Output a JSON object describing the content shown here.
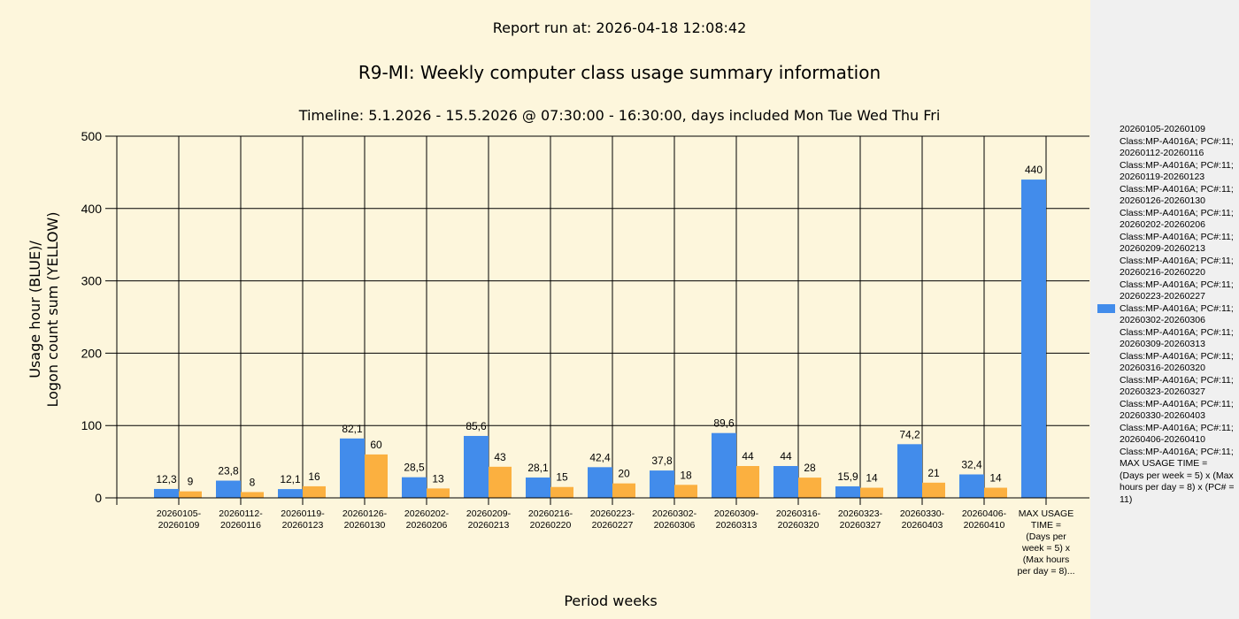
{
  "header": {
    "report_run": "Report run at: 2026-04-18 12:08:42",
    "title": "R9-MI: Weekly computer class usage summary information",
    "subtitle": "Timeline:  5.1.2026  - 15.5.2026  @  07:30:00 -  16:30:00, days included Mon Tue Wed Thu Fri"
  },
  "chart_data": {
    "type": "bar",
    "title": "R9-MI: Weekly computer class usage summary information",
    "xlabel": "Period weeks",
    "ylabel_lines": [
      "Usage hour (BLUE)/",
      "Logon count sum (YELLOW)"
    ],
    "ylim": [
      0,
      500
    ],
    "yticks": [
      "0",
      "100",
      "200",
      "300",
      "400",
      "500"
    ],
    "grid": true,
    "legend_position": "right",
    "categories": [
      [
        "20260105-",
        "20260109"
      ],
      [
        "20260112-",
        "20260116"
      ],
      [
        "20260119-",
        "20260123"
      ],
      [
        "20260126-",
        "20260130"
      ],
      [
        "20260202-",
        "20260206"
      ],
      [
        "20260209-",
        "20260213"
      ],
      [
        "20260216-",
        "20260220"
      ],
      [
        "20260223-",
        "20260227"
      ],
      [
        "20260302-",
        "20260306"
      ],
      [
        "20260309-",
        "20260313"
      ],
      [
        "20260316-",
        "20260320"
      ],
      [
        "20260323-",
        "20260327"
      ],
      [
        "20260330-",
        "20260403"
      ],
      [
        "20260406-",
        "20260410"
      ],
      [
        "MAX USAGE",
        "TIME =",
        "(Days per",
        "week = 5) x",
        "(Max hours",
        "per day = 8)..."
      ]
    ],
    "series": [
      {
        "name": "Usage hour",
        "color": "#428ceb",
        "values": [
          12.3,
          23.8,
          12.1,
          82.1,
          28.5,
          85.6,
          28.1,
          42.4,
          37.8,
          89.6,
          44,
          15.9,
          74.2,
          32.4,
          440
        ],
        "labels": [
          "12,3",
          "23,8",
          "12,1",
          "82,1",
          "28,5",
          "85,6",
          "28,1",
          "42,4",
          "37,8",
          "89,6",
          "44",
          "15,9",
          "74,2",
          "32,4",
          "440"
        ]
      },
      {
        "name": "Logon count sum",
        "color": "#fbb040",
        "values": [
          9,
          8,
          16,
          60,
          13,
          43,
          15,
          20,
          18,
          44,
          28,
          14,
          21,
          14,
          null
        ],
        "labels": [
          "9",
          "8",
          "16",
          "60",
          "13",
          "43",
          "15",
          "20",
          "18",
          "44",
          "28",
          "14",
          "21",
          "14",
          ""
        ]
      }
    ],
    "legend_text": [
      "20260105-20260109",
      "Class:MP-A4016A; PC#:11;",
      "20260112-20260116",
      "Class:MP-A4016A; PC#:11;",
      "20260119-20260123",
      "Class:MP-A4016A; PC#:11;",
      "20260126-20260130",
      "Class:MP-A4016A; PC#:11;",
      "20260202-20260206",
      "Class:MP-A4016A; PC#:11;",
      "20260209-20260213",
      "Class:MP-A4016A; PC#:11;",
      "20260216-20260220",
      "Class:MP-A4016A; PC#:11;",
      "20260223-20260227",
      "Class:MP-A4016A; PC#:11;",
      "20260302-20260306",
      "Class:MP-A4016A; PC#:11;",
      "20260309-20260313",
      "Class:MP-A4016A; PC#:11;",
      "20260316-20260320",
      "Class:MP-A4016A; PC#:11;",
      "20260323-20260327",
      "Class:MP-A4016A; PC#:11;",
      "20260330-20260403",
      "Class:MP-A4016A; PC#:11;",
      "20260406-20260410",
      "Class:MP-A4016A; PC#:11;",
      "MAX USAGE TIME =",
      " (Days per week = 5) x (Max hours per day = 8) x (PC# = 11)"
    ]
  }
}
